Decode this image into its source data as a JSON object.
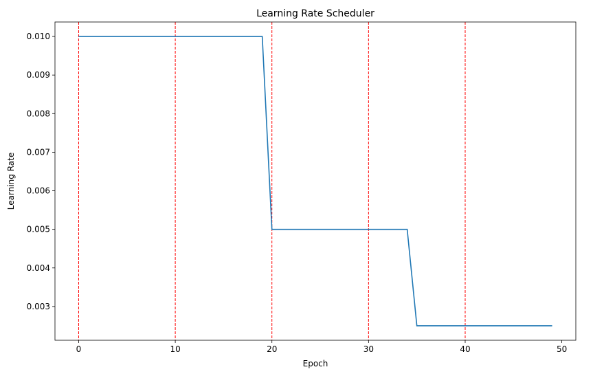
{
  "chart_data": {
    "type": "line",
    "title": "Learning Rate Scheduler",
    "xlabel": "Epoch",
    "ylabel": "Learning Rate",
    "xlim": [
      -2.45,
      51.45
    ],
    "ylim": [
      0.002125,
      0.010375
    ],
    "xticks": [
      0,
      10,
      20,
      30,
      40,
      50
    ],
    "xtick_labels": [
      "0",
      "10",
      "20",
      "30",
      "40",
      "50"
    ],
    "yticks": [
      0.003,
      0.004,
      0.005,
      0.006,
      0.007,
      0.008,
      0.009,
      0.01
    ],
    "ytick_labels": [
      "0.003",
      "0.004",
      "0.005",
      "0.006",
      "0.007",
      "0.008",
      "0.009",
      "0.010"
    ],
    "grid": false,
    "series": [
      {
        "color": "#1f77b4",
        "x": [
          0,
          1,
          2,
          3,
          4,
          5,
          6,
          7,
          8,
          9,
          10,
          11,
          12,
          13,
          14,
          15,
          16,
          17,
          18,
          19,
          20,
          21,
          22,
          23,
          24,
          25,
          26,
          27,
          28,
          29,
          30,
          31,
          32,
          33,
          34,
          35,
          36,
          37,
          38,
          39,
          40,
          41,
          42,
          43,
          44,
          45,
          46,
          47,
          48,
          49
        ],
        "values": [
          0.01,
          0.01,
          0.01,
          0.01,
          0.01,
          0.01,
          0.01,
          0.01,
          0.01,
          0.01,
          0.01,
          0.01,
          0.01,
          0.01,
          0.01,
          0.01,
          0.01,
          0.01,
          0.01,
          0.01,
          0.005,
          0.005,
          0.005,
          0.005,
          0.005,
          0.005,
          0.005,
          0.005,
          0.005,
          0.005,
          0.005,
          0.005,
          0.005,
          0.005,
          0.005,
          0.0025,
          0.0025,
          0.0025,
          0.0025,
          0.0025,
          0.0025,
          0.0025,
          0.0025,
          0.0025,
          0.0025,
          0.0025,
          0.0025,
          0.0025,
          0.0025,
          0.0025
        ]
      }
    ],
    "vlines": {
      "x": [
        0,
        10,
        20,
        30,
        40
      ],
      "color": "#ff0000",
      "style": "dashed"
    }
  }
}
